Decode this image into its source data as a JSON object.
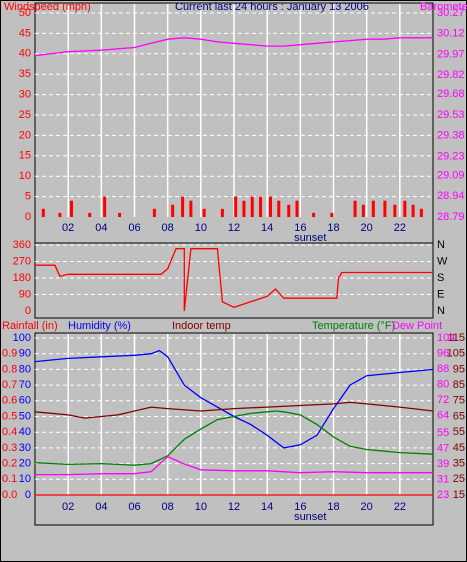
{
  "chart_data": [
    {
      "type": "combo",
      "title": "Current last 24 hours : January 13 2006",
      "xlim": [
        0,
        24
      ],
      "xticks": [
        {
          "value": 2,
          "label": "02"
        },
        {
          "value": 4,
          "label": "04"
        },
        {
          "value": 6,
          "label": "06"
        },
        {
          "value": 8,
          "label": "08"
        },
        {
          "value": 10,
          "label": "10"
        },
        {
          "value": 12,
          "label": "12"
        },
        {
          "value": 14,
          "label": "14"
        },
        {
          "value": 16,
          "label": "16"
        },
        {
          "value": 18,
          "label": "18"
        },
        {
          "value": 20,
          "label": "20"
        },
        {
          "value": 22,
          "label": "22"
        }
      ],
      "annotations": [
        {
          "text": "sunset",
          "x": 16.6
        }
      ],
      "ylim": [
        0,
        50
      ],
      "yticks": [
        0,
        5,
        10,
        15,
        20,
        25,
        30,
        35,
        40,
        45,
        50
      ],
      "y2lim": [
        28.79,
        30.27
      ],
      "y2ticks": [
        28.79,
        28.94,
        29.09,
        29.23,
        29.38,
        29.53,
        29.68,
        29.82,
        29.97,
        30.12,
        30.27
      ],
      "grid": true,
      "series": [
        {
          "name": "Windspeed (mph)",
          "type": "bar",
          "color": "#ff0000",
          "x": [
            0.5,
            1.5,
            2.2,
            3.3,
            4.2,
            5.1,
            7.2,
            8.3,
            8.9,
            9.4,
            10.2,
            11.3,
            12.1,
            12.6,
            13.1,
            13.6,
            14.2,
            14.7,
            15.3,
            15.8,
            16.8,
            17.9,
            19.3,
            19.8,
            20.4,
            21.1,
            21.7,
            22.3,
            22.8,
            23.3
          ],
          "values": [
            2,
            1,
            4,
            1,
            5,
            1,
            2,
            3,
            5,
            4,
            2,
            2,
            5,
            4,
            5,
            5,
            5,
            4,
            3,
            4,
            1,
            1,
            4,
            3,
            4,
            4,
            3,
            4,
            3,
            2
          ]
        },
        {
          "name": "Barometer (in.)",
          "type": "line",
          "axis": "y2",
          "color": "#ff00ff",
          "x": [
            0,
            2,
            4,
            6,
            7,
            8,
            9,
            10,
            11,
            12,
            13,
            14,
            15,
            16,
            17,
            18,
            19,
            20,
            21,
            22,
            23,
            24
          ],
          "values": [
            29.96,
            29.99,
            30.0,
            30.02,
            30.05,
            30.08,
            30.09,
            30.08,
            30.06,
            30.05,
            30.04,
            30.03,
            30.03,
            30.04,
            30.05,
            30.06,
            30.07,
            30.08,
            30.08,
            30.09,
            30.09,
            30.09
          ]
        }
      ]
    },
    {
      "type": "line",
      "xlim": [
        0,
        24
      ],
      "ylim": [
        0,
        360
      ],
      "yticks": [
        0,
        90,
        180,
        270,
        360
      ],
      "y2lim": [
        0,
        360
      ],
      "y2ticks": [
        {
          "value": 0,
          "label": "N"
        },
        {
          "value": 90,
          "label": "E"
        },
        {
          "value": 180,
          "label": "S"
        },
        {
          "value": 270,
          "label": "W"
        },
        {
          "value": 360,
          "label": "N"
        }
      ],
      "grid": true,
      "series": [
        {
          "color": "#ff0000",
          "x": [
            0,
            1.2,
            1.5,
            2,
            7.6,
            8,
            8.5,
            9,
            9,
            9.4,
            11,
            11.3,
            12,
            13,
            14,
            14.5,
            15,
            18.2,
            18.3,
            18.5,
            24
          ],
          "values": [
            250,
            250,
            190,
            200,
            200,
            230,
            340,
            340,
            0,
            340,
            340,
            50,
            20,
            50,
            80,
            120,
            70,
            70,
            180,
            210,
            210
          ]
        }
      ]
    },
    {
      "type": "line",
      "xlim": [
        0,
        24
      ],
      "xticks": [
        {
          "value": 2,
          "label": "02"
        },
        {
          "value": 4,
          "label": "04"
        },
        {
          "value": 6,
          "label": "06"
        },
        {
          "value": 8,
          "label": "08"
        },
        {
          "value": 10,
          "label": "10"
        },
        {
          "value": 12,
          "label": "12"
        },
        {
          "value": 14,
          "label": "14"
        },
        {
          "value": 16,
          "label": "16"
        },
        {
          "value": 18,
          "label": "18"
        },
        {
          "value": 20,
          "label": "20"
        },
        {
          "value": 22,
          "label": "22"
        }
      ],
      "annotations": [
        {
          "text": "sunset",
          "x": 16.6
        }
      ],
      "ylim": [
        0,
        100
      ],
      "yticks": [
        0,
        10,
        20,
        30,
        40,
        50,
        60,
        70,
        80,
        90,
        100
      ],
      "y2lim": [
        15,
        115
      ],
      "y2ticks": [
        15,
        25,
        35,
        45,
        55,
        65,
        75,
        85,
        95,
        105,
        115
      ],
      "y3lim": [
        0,
        1
      ],
      "y3ticks": [
        {
          "value": 0,
          "label": "0.0"
        },
        {
          "value": 0.1,
          "label": "0.1"
        },
        {
          "value": 0.2,
          "label": "0.2"
        },
        {
          "value": 0.3,
          "label": "0.3"
        },
        {
          "value": 0.4,
          "label": "0.4"
        },
        {
          "value": 0.5,
          "label": "0.5"
        },
        {
          "value": 0.6,
          "label": "0.6"
        },
        {
          "value": 0.7,
          "label": "0.7"
        },
        {
          "value": 0.8,
          "label": "0.8"
        },
        {
          "value": 0.9,
          "label": "0.9"
        }
      ],
      "y4lim": [
        23,
        104
      ],
      "y4ticks": [
        23,
        31,
        39,
        47,
        55,
        64,
        72,
        80,
        88,
        96,
        104
      ],
      "grid": true,
      "series": [
        {
          "name": "Rainfall (in)",
          "axis": "y3",
          "color": "#ff0000",
          "x": [
            0,
            24
          ],
          "values": [
            0,
            0
          ]
        },
        {
          "name": "Humidity (%)",
          "color": "#0000ff",
          "x": [
            0,
            2,
            4,
            6,
            7,
            7.5,
            8,
            9,
            10,
            11,
            12,
            13,
            14,
            15,
            16,
            17,
            18,
            19,
            20,
            21,
            22,
            23,
            24
          ],
          "values": [
            85,
            87,
            88,
            89,
            90,
            92,
            88,
            70,
            62,
            56,
            50,
            45,
            38,
            30,
            32,
            38,
            55,
            70,
            76,
            77,
            78,
            79,
            80
          ]
        },
        {
          "name": "Indoor temp",
          "axis": "y2",
          "color": "#800000",
          "x": [
            0,
            2,
            3,
            5,
            7,
            8,
            10,
            12,
            14,
            16,
            18,
            19,
            20,
            22,
            24
          ],
          "values": [
            68,
            66,
            64,
            66,
            71,
            70,
            68.5,
            70,
            71,
            72,
            73,
            74,
            73,
            71,
            68.5
          ]
        },
        {
          "name": "Temperature (°F)",
          "axis": "y2",
          "color": "#008000",
          "x": [
            0,
            2,
            4,
            6,
            7,
            8,
            9,
            10,
            11,
            12,
            13,
            14,
            14.5,
            15,
            16,
            17,
            18,
            19,
            20,
            22,
            24
          ],
          "values": [
            35.6,
            34.5,
            35,
            34,
            35,
            40,
            50.5,
            57,
            63,
            65,
            67,
            68,
            68.5,
            68,
            66,
            60,
            52,
            46,
            44,
            42,
            41
          ]
        },
        {
          "name": "Dew Point",
          "axis": "y4",
          "color": "#ff00ff",
          "x": [
            0,
            2,
            4,
            6,
            7,
            8,
            9,
            10,
            12,
            14,
            16,
            18,
            20,
            22,
            24
          ],
          "values": [
            33.5,
            33.5,
            34,
            34,
            35,
            42.8,
            39,
            36,
            35.5,
            35.5,
            34.5,
            35,
            34.5,
            34.5,
            34.5
          ]
        }
      ]
    }
  ]
}
